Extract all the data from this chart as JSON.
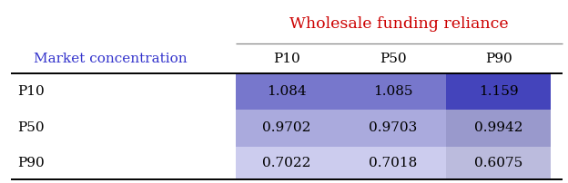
{
  "title": "Wholesale funding reliance",
  "title_color": "#cc0000",
  "col_header_label": "Market concentration",
  "col_header_color": "#3333cc",
  "col_headers": [
    "P10",
    "P50",
    "P90"
  ],
  "row_headers": [
    "P10",
    "P50",
    "P90"
  ],
  "values": [
    [
      "1.084",
      "1.085",
      "1.159"
    ],
    [
      "0.9702",
      "0.9703",
      "0.9942"
    ],
    [
      "0.7022",
      "0.7018",
      "0.6075"
    ]
  ],
  "cell_colors": [
    [
      "#7777cc",
      "#7777cc",
      "#4444bb"
    ],
    [
      "#aaaadd",
      "#aaaadd",
      "#9999cc"
    ],
    [
      "#ccccee",
      "#ccccee",
      "#bbbbdd"
    ]
  ],
  "background_color": "#ffffff",
  "figsize": [
    6.24,
    2.02
  ],
  "dpi": 100
}
